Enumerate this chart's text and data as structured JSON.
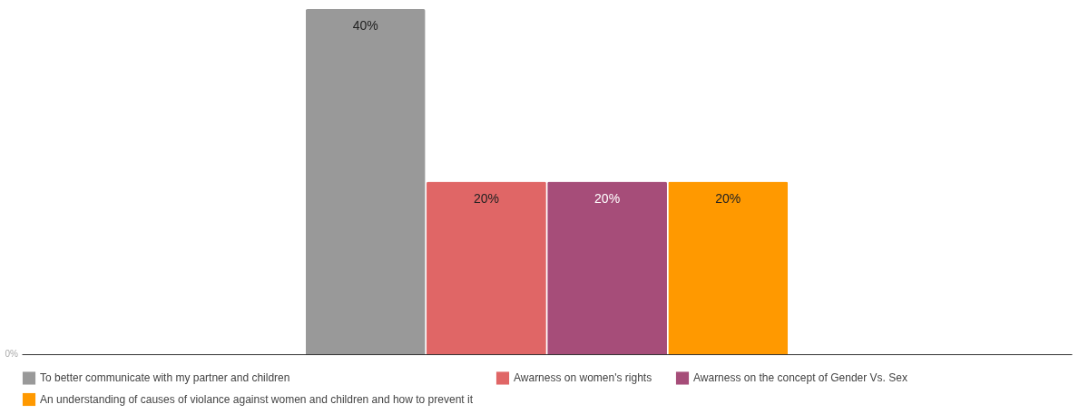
{
  "chart_data": {
    "type": "bar",
    "categories": [
      null
    ],
    "series": [
      {
        "name": "To better communicate with my partner and children",
        "color": "#999999",
        "values": [
          40
        ],
        "value_labels": [
          "40%"
        ]
      },
      {
        "name": "Awarness on women's rights",
        "color": "#e06666",
        "values": [
          20
        ],
        "value_labels": [
          "20%"
        ]
      },
      {
        "name": "Awarness on the concept of Gender Vs. Sex",
        "color": "#a64d79",
        "values": [
          20
        ],
        "value_labels": [
          "20%"
        ]
      },
      {
        "name": "An understanding of causes of violance against women and children and how to prevent it",
        "color": "#ff9900",
        "values": [
          20
        ],
        "value_labels": [
          "20%"
        ]
      }
    ],
    "ylim": [
      0,
      40
    ],
    "annotations": [
      "0%"
    ],
    "tick_labels": false,
    "legend": "bottom"
  }
}
